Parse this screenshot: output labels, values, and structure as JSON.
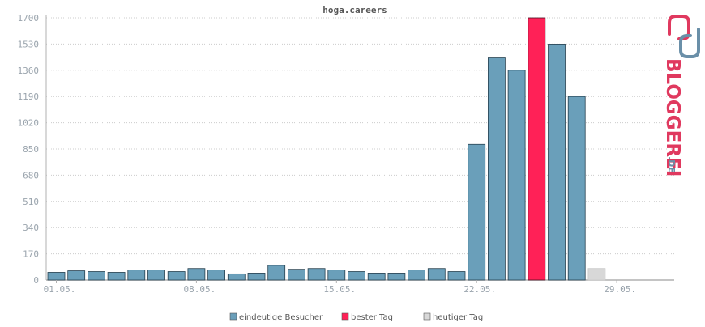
{
  "chart_data": {
    "type": "bar",
    "title": "hoga.careers",
    "xlabel": "",
    "ylabel": "",
    "ylim": [
      0,
      1760
    ],
    "yticks": [
      0,
      170,
      340,
      510,
      680,
      850,
      1020,
      1190,
      1360,
      1530,
      1700
    ],
    "grid": true,
    "legend_placement": "bottom",
    "categories": [
      "01.05.",
      "02.05.",
      "03.05.",
      "04.05.",
      "05.05.",
      "06.05.",
      "07.05.",
      "08.05.",
      "09.05.",
      "10.05.",
      "11.05.",
      "12.05.",
      "13.05.",
      "14.05.",
      "15.05.",
      "16.05.",
      "17.05.",
      "18.05.",
      "19.05.",
      "20.05.",
      "21.05.",
      "22.05.",
      "23.05.",
      "24.05.",
      "25.05.",
      "26.05.",
      "27.05.",
      "28.05.",
      "29.05.",
      "30.05.",
      "31.05."
    ],
    "xtick_labels": [
      "01.05.",
      "08.05.",
      "15.05.",
      "22.05.",
      "29.05."
    ],
    "series": [
      {
        "name": "eindeutige Besucher",
        "values": [
          50,
          60,
          55,
          50,
          65,
          65,
          55,
          75,
          65,
          40,
          45,
          95,
          70,
          75,
          65,
          55,
          45,
          45,
          65,
          75,
          55,
          880,
          1440,
          1360,
          1700,
          1530,
          1190,
          75,
          0,
          0,
          0
        ]
      }
    ],
    "best_day_index": 24,
    "today_index": 27,
    "colors": {
      "visitors": "#6a9fba",
      "best_day": "#ff2157",
      "today": "#d8d8d8",
      "grid": "#cccccc",
      "axis": "#b0b0b0"
    },
    "legend": [
      {
        "label": "eindeutige Besucher",
        "color": "#6a9fba"
      },
      {
        "label": "bester Tag",
        "color": "#ff2157"
      },
      {
        "label": "heutiger Tag",
        "color": "#d8d8d8"
      }
    ]
  },
  "logo": {
    "text": "BLOGGEREI",
    "suffix": ".DE"
  }
}
